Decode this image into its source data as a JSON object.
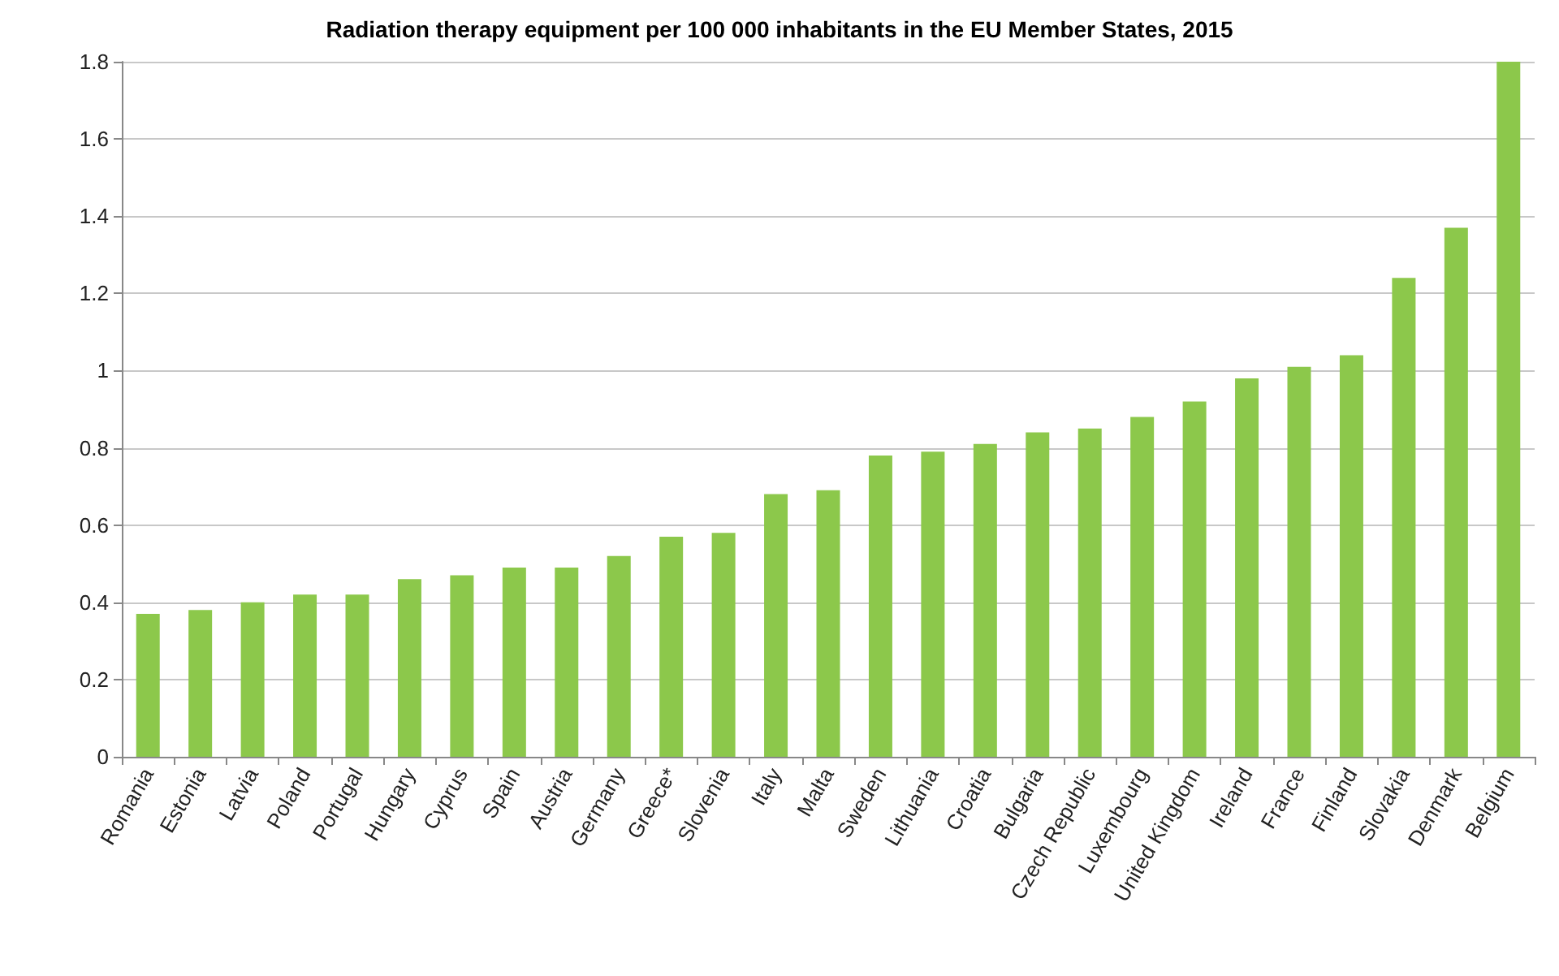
{
  "chart_data": {
    "type": "bar",
    "title": "Radiation therapy equipment per 100 000 inhabitants in the EU Member States, 2015",
    "categories": [
      "Romania",
      "Estonia",
      "Latvia",
      "Poland",
      "Portugal",
      "Hungary",
      "Cyprus",
      "Spain",
      "Austria",
      "Germany",
      "Greece*",
      "Slovenia",
      "Italy",
      "Malta",
      "Sweden",
      "Lithuania",
      "Croatia",
      "Bulgaria",
      "Czech Republic",
      "Luxembourg",
      "United Kingdom",
      "Ireland",
      "France",
      "Finland",
      "Slovakia",
      "Denmark",
      "Belgium"
    ],
    "values": [
      0.37,
      0.38,
      0.4,
      0.42,
      0.42,
      0.46,
      0.47,
      0.49,
      0.49,
      0.52,
      0.57,
      0.58,
      0.68,
      0.69,
      0.78,
      0.79,
      0.81,
      0.84,
      0.85,
      0.88,
      0.92,
      0.98,
      1.01,
      1.04,
      1.24,
      1.37,
      1.8
    ],
    "color": "#8cc84b",
    "ylim": [
      0,
      1.8
    ],
    "yticks": [
      0,
      0.2,
      0.4,
      0.6,
      0.8,
      1,
      1.2,
      1.4,
      1.6,
      1.8
    ],
    "grid": "y"
  }
}
